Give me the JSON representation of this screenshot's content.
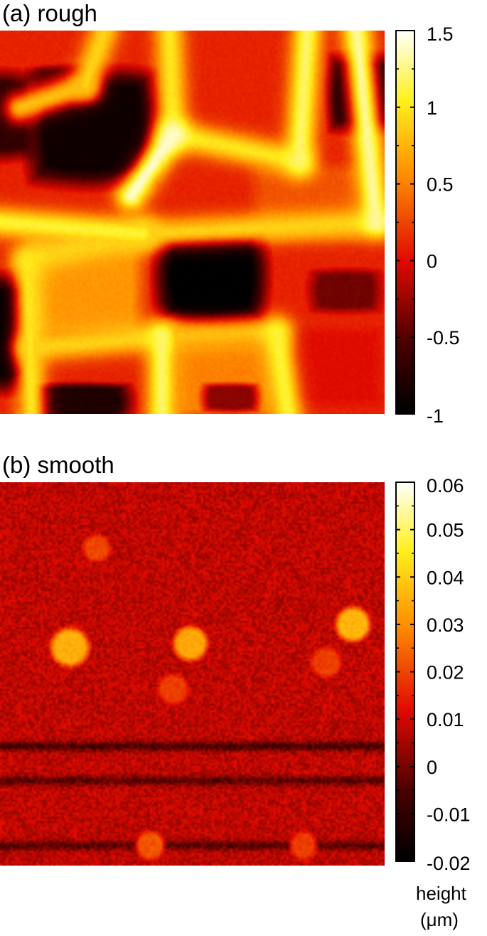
{
  "chart_data": [
    {
      "type": "heatmap",
      "title": "(a) rough",
      "colorbar": {
        "range": [
          -1,
          1.5
        ],
        "ticks": [
          1.5,
          1,
          0.5,
          0,
          -0.5,
          -1
        ],
        "tick_labels": [
          "1.5",
          "1",
          "0.5",
          "0",
          "-0.5",
          "-1"
        ],
        "minor_ticks": [
          1.25,
          0.75,
          0.25,
          -0.25,
          -0.75
        ]
      },
      "colormap": "black-red-yellow-white (hot)",
      "features": {
        "background_level": 0.1,
        "ridges": [
          {
            "from": [
              0.27,
              0.0
            ],
            "to": [
              0.22,
              0.14
            ],
            "level": 0.9
          },
          {
            "from": [
              0.22,
              0.14
            ],
            "to": [
              0.05,
              0.2
            ],
            "level": 0.8
          },
          {
            "from": [
              0.44,
              0.0
            ],
            "to": [
              0.45,
              0.27
            ],
            "level": 1.0
          },
          {
            "from": [
              0.45,
              0.27
            ],
            "to": [
              0.78,
              0.34
            ],
            "level": 1.0
          },
          {
            "from": [
              0.78,
              0.34
            ],
            "to": [
              0.8,
              0.0
            ],
            "level": 1.2
          },
          {
            "from": [
              0.45,
              0.27
            ],
            "to": [
              0.34,
              0.43
            ],
            "level": 1.4
          },
          {
            "from": [
              0.0,
              0.5
            ],
            "to": [
              0.37,
              0.53
            ],
            "level": 1.1
          },
          {
            "from": [
              0.37,
              0.53
            ],
            "to": [
              0.07,
              0.6
            ],
            "level": 0.9
          },
          {
            "from": [
              0.07,
              0.6
            ],
            "to": [
              0.08,
              1.0
            ],
            "level": 1.0
          },
          {
            "from": [
              0.37,
              0.53
            ],
            "to": [
              1.0,
              0.5
            ],
            "level": 0.9
          },
          {
            "from": [
              0.07,
              0.83
            ],
            "to": [
              0.42,
              0.8
            ],
            "level": 0.9
          },
          {
            "from": [
              0.42,
              0.8
            ],
            "to": [
              0.42,
              1.0
            ],
            "level": 1.2
          },
          {
            "from": [
              0.42,
              0.8
            ],
            "to": [
              0.72,
              0.79
            ],
            "level": 0.8
          },
          {
            "from": [
              0.72,
              0.79
            ],
            "to": [
              0.75,
              1.0
            ],
            "level": 1.1
          },
          {
            "from": [
              0.93,
              0.0
            ],
            "to": [
              0.98,
              0.5
            ],
            "level": 1.3
          }
        ],
        "pits": [
          {
            "center": [
              0.24,
              0.25
            ],
            "radius": [
              0.18,
              0.16
            ],
            "level": -0.9
          },
          {
            "center": [
              0.17,
              0.14
            ],
            "radius": [
              0.09,
              0.05
            ],
            "level": -0.6
          },
          {
            "center": [
              0.94,
              0.16
            ],
            "radius": [
              0.09,
              0.11
            ],
            "level": -0.8
          },
          {
            "center": [
              0.55,
              0.64
            ],
            "radius": [
              0.15,
              0.13
            ],
            "level": -1.0
          },
          {
            "center": [
              0.02,
              0.79
            ],
            "radius": [
              0.06,
              0.16
            ],
            "level": -1.0
          },
          {
            "center": [
              0.2,
              0.97
            ],
            "radius": [
              0.15,
              0.05
            ],
            "level": -0.8
          },
          {
            "center": [
              0.0,
              0.22
            ],
            "radius": [
              0.09,
              0.12
            ],
            "level": -0.7
          },
          {
            "center": [
              0.9,
              0.68
            ],
            "radius": [
              0.1,
              0.06
            ],
            "level": -0.4
          },
          {
            "center": [
              0.6,
              0.96
            ],
            "radius": [
              0.08,
              0.04
            ],
            "level": -0.3
          }
        ],
        "plateaus": [
          {
            "center": [
              0.62,
              0.15
            ],
            "radius": [
              0.12,
              0.12
            ],
            "level": 0.1
          },
          {
            "center": [
              0.8,
              0.45
            ],
            "radius": [
              0.14,
              0.1
            ],
            "level": 0.3
          },
          {
            "center": [
              0.22,
              0.67
            ],
            "radius": [
              0.15,
              0.13
            ],
            "level": 0.6
          },
          {
            "center": [
              0.59,
              0.91
            ],
            "radius": [
              0.14,
              0.1
            ],
            "level": 0.5
          },
          {
            "center": [
              0.87,
              0.88
            ],
            "radius": [
              0.12,
              0.1
            ],
            "level": 0.0
          }
        ]
      }
    },
    {
      "type": "heatmap",
      "title": "(b) smooth",
      "colorbar": {
        "range": [
          -0.02,
          0.06
        ],
        "ticks": [
          0.06,
          0.05,
          0.04,
          0.03,
          0.02,
          0.01,
          0,
          -0.01,
          -0.02
        ],
        "tick_labels": [
          "0.06",
          "0.05",
          "0.04",
          "0.03",
          "0.02",
          "0.01",
          "0",
          "-0.01",
          "-0.02"
        ],
        "minor_ticks": [
          0.055,
          0.045,
          0.035,
          0.025,
          0.015,
          0.005,
          -0.005,
          -0.015
        ],
        "label_line1": "height",
        "label_line2": "(μm)"
      },
      "colormap": "black-red-yellow-white (hot)",
      "features": {
        "background_level": 0.008,
        "noise_amplitude": 0.005,
        "dark_bands": [
          {
            "y": 0.69,
            "level": -0.006
          },
          {
            "y": 0.78,
            "level": -0.004
          },
          {
            "y": 0.95,
            "level": -0.004
          }
        ],
        "bumps": [
          {
            "center": [
              0.18,
              0.43
            ],
            "radius": 0.056,
            "level": 0.035
          },
          {
            "center": [
              0.495,
              0.42
            ],
            "radius": 0.05,
            "level": 0.034
          },
          {
            "center": [
              0.92,
              0.37
            ],
            "radius": 0.05,
            "level": 0.036
          },
          {
            "center": [
              0.25,
              0.17
            ],
            "radius": 0.04,
            "level": 0.02
          },
          {
            "center": [
              0.45,
              0.54
            ],
            "radius": 0.044,
            "level": 0.019
          },
          {
            "center": [
              0.85,
              0.47
            ],
            "radius": 0.044,
            "level": 0.019
          },
          {
            "center": [
              0.39,
              0.95
            ],
            "radius": 0.042,
            "level": 0.022
          },
          {
            "center": [
              0.79,
              0.95
            ],
            "radius": 0.04,
            "level": 0.019
          }
        ]
      }
    }
  ]
}
